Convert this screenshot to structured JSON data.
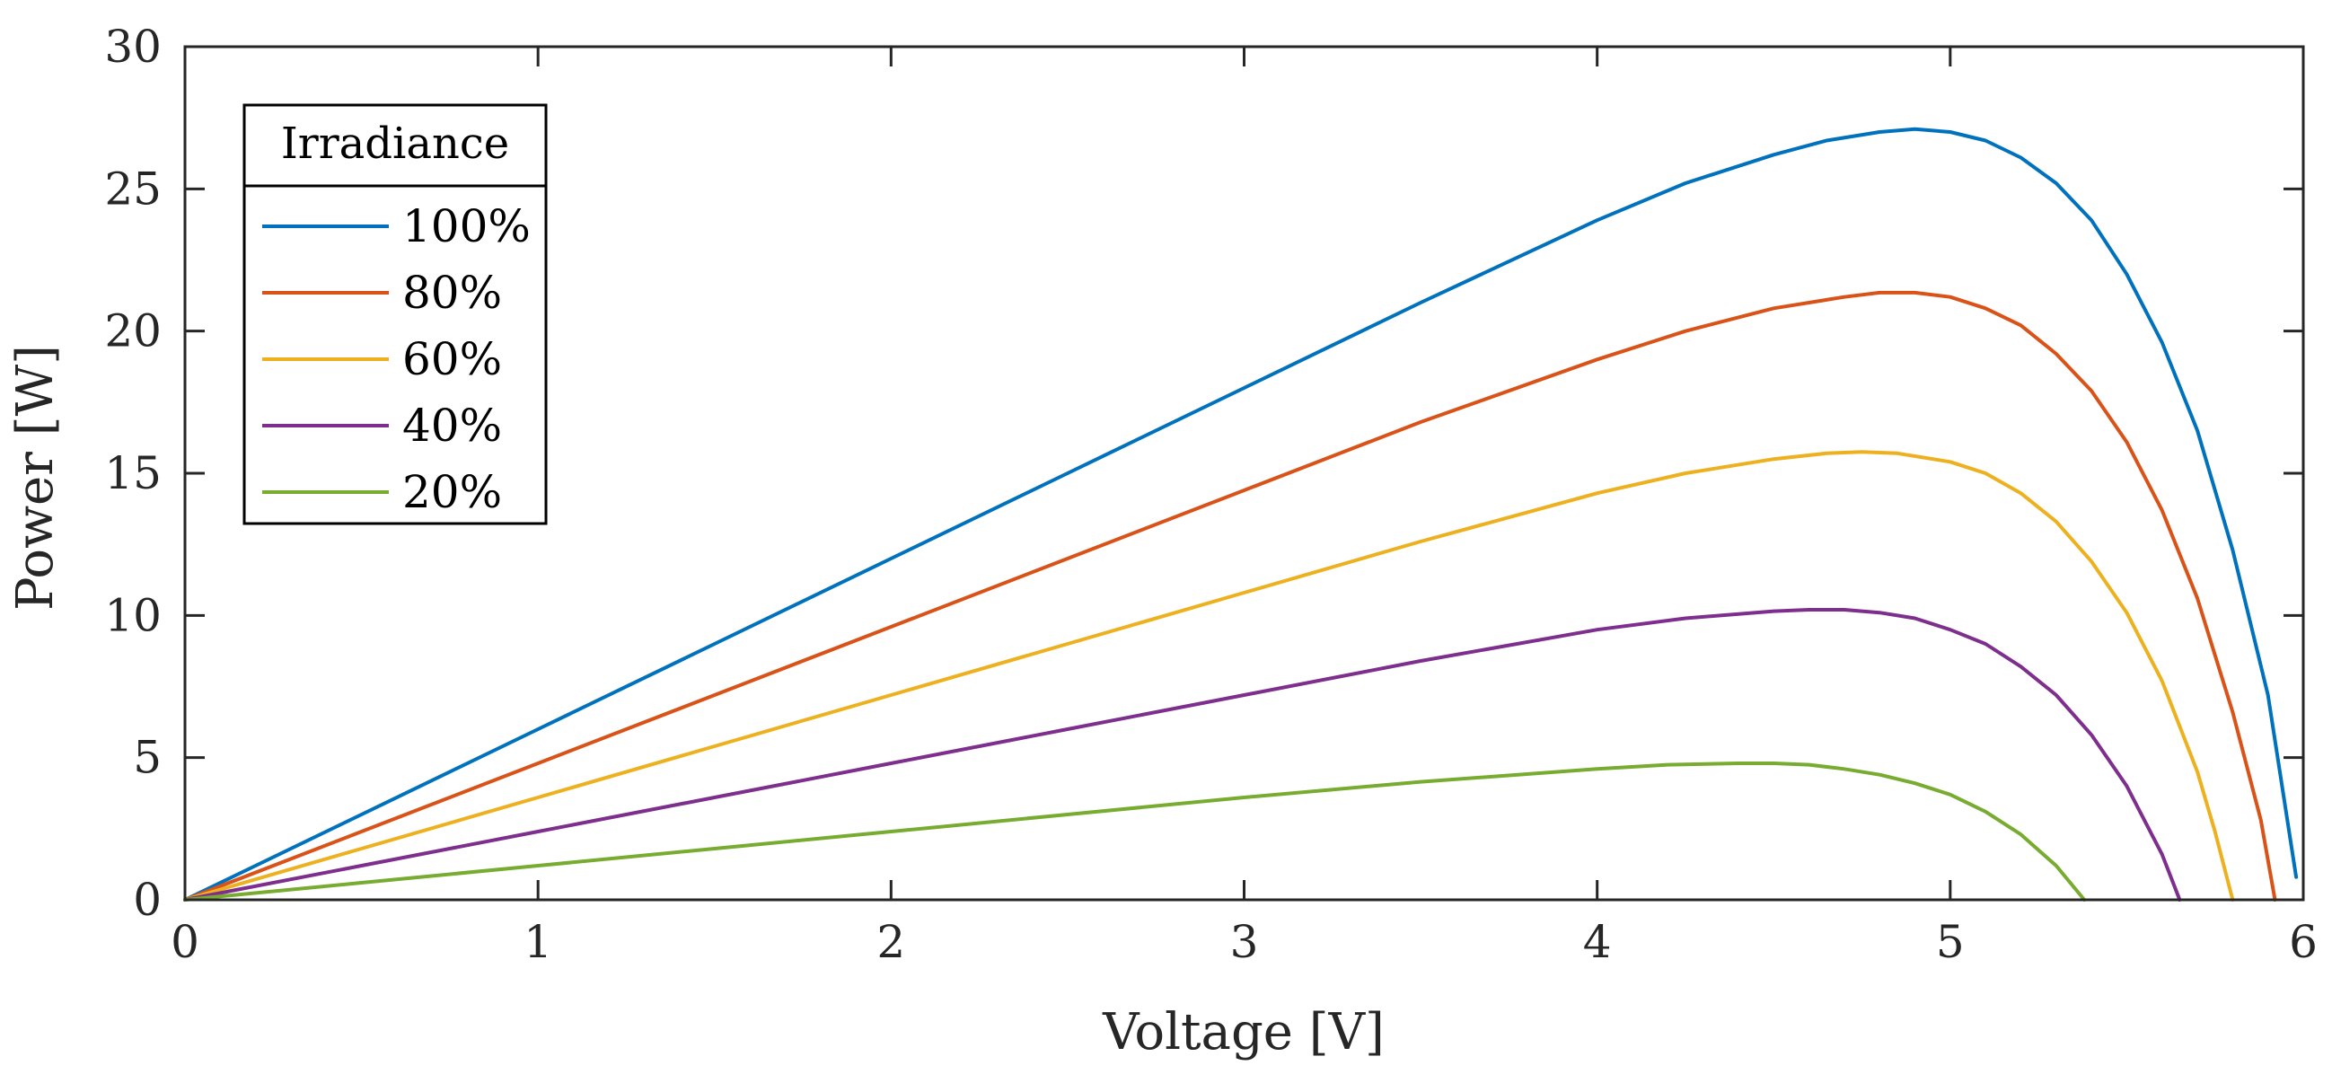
{
  "chart_data": {
    "type": "line",
    "xlabel": "Voltage [V]",
    "ylabel": "Power [W]",
    "xlim": [
      0,
      6
    ],
    "ylim": [
      0,
      30
    ],
    "xticks": [
      0,
      1,
      2,
      3,
      4,
      5,
      6
    ],
    "yticks": [
      0,
      5,
      10,
      15,
      20,
      25,
      30
    ],
    "grid": false,
    "legend": {
      "title": "Irradiance",
      "position": "top-left"
    },
    "series": [
      {
        "name": "100%",
        "color": "#0072BD",
        "x": [
          0,
          0.5,
          1,
          1.5,
          2,
          2.5,
          3,
          3.5,
          4,
          4.25,
          4.5,
          4.65,
          4.8,
          4.9,
          5.0,
          5.1,
          5.2,
          5.3,
          5.4,
          5.5,
          5.6,
          5.7,
          5.8,
          5.9,
          5.98
        ],
        "y": [
          0,
          3.0,
          6.0,
          9.0,
          12.0,
          15.0,
          18.0,
          21.0,
          23.9,
          25.2,
          26.2,
          26.7,
          27.0,
          27.1,
          27.0,
          26.7,
          26.1,
          25.2,
          23.9,
          22.0,
          19.6,
          16.5,
          12.3,
          7.2,
          0.8
        ]
      },
      {
        "name": "80%",
        "color": "#D95319",
        "x": [
          0,
          0.5,
          1,
          1.5,
          2,
          2.5,
          3,
          3.5,
          4,
          4.25,
          4.5,
          4.7,
          4.8,
          4.9,
          5.0,
          5.1,
          5.2,
          5.3,
          5.4,
          5.5,
          5.6,
          5.7,
          5.8,
          5.88,
          5.92
        ],
        "y": [
          0,
          2.4,
          4.8,
          7.2,
          9.6,
          12.0,
          14.4,
          16.8,
          19.0,
          20.0,
          20.8,
          21.2,
          21.35,
          21.35,
          21.2,
          20.8,
          20.2,
          19.2,
          17.9,
          16.1,
          13.7,
          10.6,
          6.6,
          2.8,
          0
        ]
      },
      {
        "name": "60%",
        "color": "#EDB120",
        "x": [
          0,
          0.5,
          1,
          1.5,
          2,
          2.5,
          3,
          3.5,
          4,
          4.25,
          4.5,
          4.65,
          4.75,
          4.85,
          5.0,
          5.1,
          5.2,
          5.3,
          5.4,
          5.5,
          5.6,
          5.7,
          5.75,
          5.8
        ],
        "y": [
          0,
          1.8,
          3.6,
          5.4,
          7.2,
          9.0,
          10.8,
          12.6,
          14.3,
          15.0,
          15.5,
          15.7,
          15.75,
          15.7,
          15.4,
          15.0,
          14.3,
          13.3,
          11.9,
          10.1,
          7.7,
          4.5,
          2.4,
          0
        ]
      },
      {
        "name": "40%",
        "color": "#7E2F8E",
        "x": [
          0,
          0.5,
          1,
          1.5,
          2,
          2.5,
          3,
          3.5,
          4,
          4.25,
          4.5,
          4.6,
          4.7,
          4.8,
          4.9,
          5.0,
          5.1,
          5.2,
          5.3,
          5.4,
          5.5,
          5.6,
          5.65
        ],
        "y": [
          0,
          1.2,
          2.4,
          3.6,
          4.8,
          6.0,
          7.2,
          8.4,
          9.5,
          9.9,
          10.15,
          10.2,
          10.2,
          10.1,
          9.9,
          9.5,
          9.0,
          8.2,
          7.2,
          5.8,
          4.0,
          1.6,
          0
        ]
      },
      {
        "name": "20%",
        "color": "#77AC30",
        "x": [
          0,
          0.5,
          1,
          1.5,
          2,
          2.5,
          3,
          3.5,
          4,
          4.2,
          4.4,
          4.5,
          4.6,
          4.7,
          4.8,
          4.9,
          5.0,
          5.1,
          5.2,
          5.3,
          5.38
        ],
        "y": [
          0,
          0.6,
          1.2,
          1.8,
          2.4,
          3.0,
          3.6,
          4.15,
          4.6,
          4.75,
          4.8,
          4.8,
          4.75,
          4.6,
          4.4,
          4.1,
          3.7,
          3.1,
          2.3,
          1.2,
          0
        ]
      }
    ]
  }
}
